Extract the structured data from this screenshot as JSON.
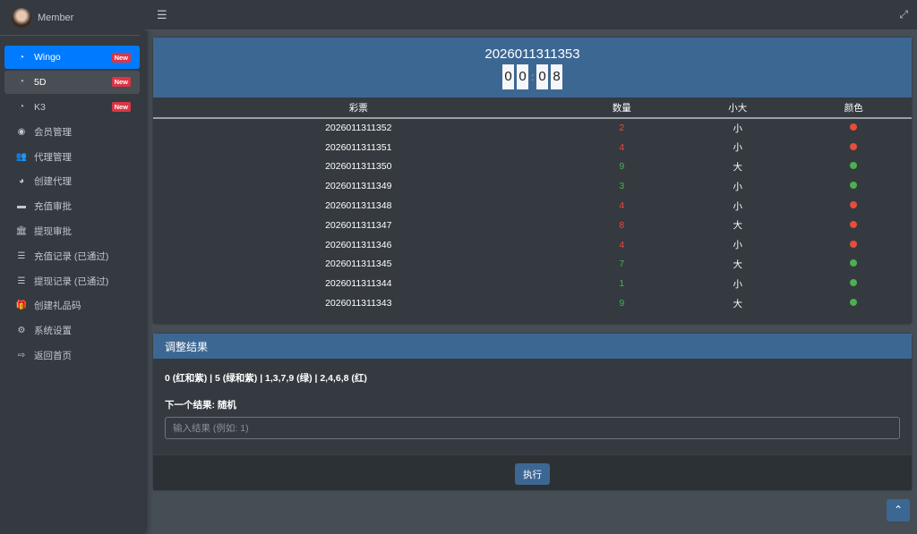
{
  "sidebar": {
    "user": "Member",
    "items": [
      {
        "label": "Wingo",
        "icon": "tachometer-icon",
        "badge": "New",
        "state": "active"
      },
      {
        "label": "5D",
        "icon": "tachometer-icon",
        "badge": "New",
        "state": "hover"
      },
      {
        "label": "K3",
        "icon": "tachometer-icon",
        "badge": "New"
      },
      {
        "label": "会员管理",
        "icon": "user-circle-icon"
      },
      {
        "label": "代理管理",
        "icon": "users-icon"
      },
      {
        "label": "创建代理",
        "icon": "pie-chart-icon"
      },
      {
        "label": "充值审批",
        "icon": "credit-card-icon"
      },
      {
        "label": "提现审批",
        "icon": "bank-icon"
      },
      {
        "label": "充值记录 (已通过)",
        "icon": "list-icon"
      },
      {
        "label": "提现记录 (已通过)",
        "icon": "list-icon"
      },
      {
        "label": "创建礼品码",
        "icon": "gift-icon"
      },
      {
        "label": "系统设置",
        "icon": "cog-icon"
      },
      {
        "label": "返回首页",
        "icon": "sign-out-icon"
      }
    ]
  },
  "topbar": {
    "menu_icon": "bars-icon",
    "expand_icon": "expand-icon"
  },
  "game": {
    "period": "2026011311353",
    "timer": [
      "0",
      "0",
      "0",
      "8"
    ]
  },
  "table": {
    "headers": [
      "彩票",
      "数量",
      "小大",
      "颜色"
    ],
    "rows": [
      {
        "period": "2026011311352",
        "number": "2",
        "size": "小",
        "color": "red"
      },
      {
        "period": "2026011311351",
        "number": "4",
        "size": "小",
        "color": "red"
      },
      {
        "period": "2026011311350",
        "number": "9",
        "size": "大",
        "color": "green"
      },
      {
        "period": "2026011311349",
        "number": "3",
        "size": "小",
        "color": "green"
      },
      {
        "period": "2026011311348",
        "number": "4",
        "size": "小",
        "color": "red"
      },
      {
        "period": "2026011311347",
        "number": "8",
        "size": "大",
        "color": "red"
      },
      {
        "period": "2026011311346",
        "number": "4",
        "size": "小",
        "color": "red"
      },
      {
        "period": "2026011311345",
        "number": "7",
        "size": "大",
        "color": "green"
      },
      {
        "period": "2026011311344",
        "number": "1",
        "size": "小",
        "color": "green"
      },
      {
        "period": "2026011311343",
        "number": "9",
        "size": "大",
        "color": "green"
      }
    ]
  },
  "colors": {
    "red": "#e74c3c",
    "green": "#4caf50",
    "accent": "#3d6793",
    "active": "#007bff"
  },
  "adjust": {
    "title": "调整结果",
    "rule": "0 (红和紫) | 5 (绿和紫) | 1,3,7,9 (绿) | 2,4,6,8 (红)",
    "next": "下一个结果: 随机",
    "placeholder": "输入结果 (例如: 1)",
    "submit": "执行"
  }
}
